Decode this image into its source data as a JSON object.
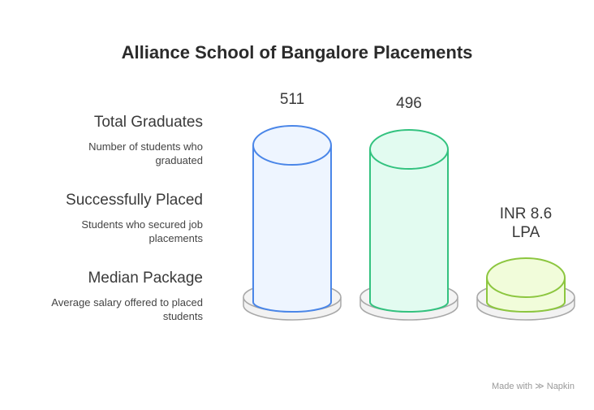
{
  "title": "Alliance School of Bangalore Placements",
  "items": [
    {
      "heading": "Total Graduates",
      "description": "Number of students who graduated",
      "value_label": "511",
      "color": "#4a86e8",
      "fill": "#eef5ff"
    },
    {
      "heading": "Successfully Placed",
      "description": "Students who secured job placements",
      "value_label": "496",
      "color": "#33c27f",
      "fill": "#e2fbf0"
    },
    {
      "heading": "Median Package",
      "description": "Average salary offered to placed students",
      "value_label_line1": "INR 8.6",
      "value_label_line2": "LPA",
      "color": "#8cc63f",
      "fill": "#f1fcda"
    }
  ],
  "footer": {
    "made_with": "Made with",
    "brand": "Napkin"
  }
}
